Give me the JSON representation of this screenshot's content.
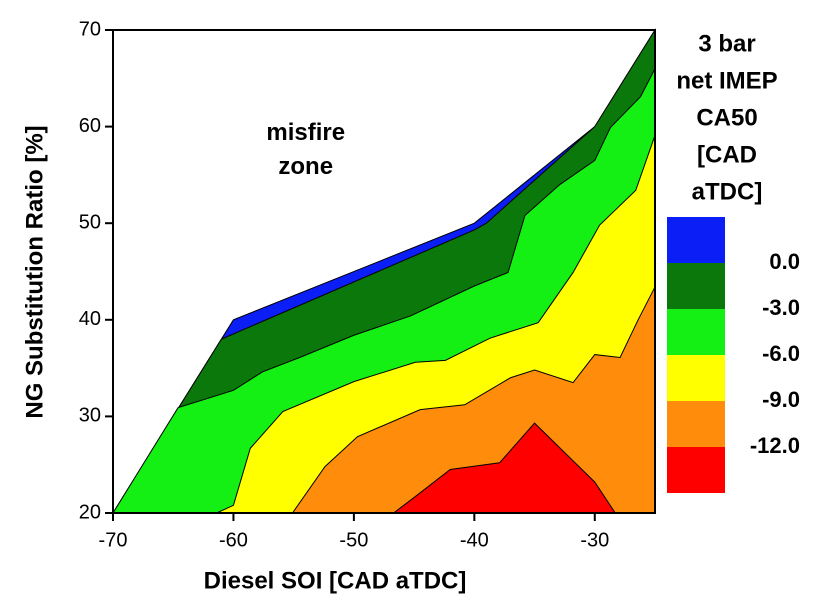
{
  "chart_data": {
    "type": "contour",
    "xlabel": "Diesel SOI [CAD aTDC]",
    "ylabel": "NG Substitution Ratio [%]",
    "xlim": [
      -70,
      -25
    ],
    "ylim": [
      20,
      70
    ],
    "xticks": [
      -70,
      -60,
      -50,
      -40,
      -30
    ],
    "yticks": [
      20,
      30,
      40,
      50,
      60,
      70
    ],
    "annotation": [
      "misfire",
      "zone"
    ],
    "annotation_at": [
      -54,
      60
    ],
    "regions": [
      {
        "color": "#0a1ef5",
        "x": [
          -70,
          -60,
          -40,
          -30,
          -25,
          -25
        ],
        "y": [
          20,
          40,
          50,
          60,
          70,
          20
        ]
      },
      {
        "color": "#0a780a",
        "x": [
          -70,
          -61,
          -40,
          -39,
          -30,
          -25,
          -25
        ],
        "y": [
          20,
          38,
          49.3,
          50,
          60,
          70,
          20
        ]
      },
      {
        "color": "#14f014",
        "x": [
          -70,
          -64.6,
          -60,
          -57.6,
          -54.5,
          -50,
          -45.3,
          -40,
          -37.2,
          -35.8,
          -32.9,
          -30,
          -28.7,
          -26.2,
          -25,
          -25
        ],
        "y": [
          20,
          30.9,
          32.7,
          34.6,
          36.1,
          38.4,
          40.4,
          43.5,
          44.9,
          50.8,
          54,
          56.5,
          59.9,
          63.1,
          66,
          20
        ]
      },
      {
        "color": "#ffff00",
        "x": [
          -61.4,
          -60,
          -58.6,
          -55.9,
          -50,
          -44.9,
          -42.4,
          -38.7,
          -34.7,
          -31.8,
          -29.6,
          -26.6,
          -25,
          -25
        ],
        "y": [
          20,
          20.8,
          26.7,
          30.5,
          33.6,
          35.6,
          35.8,
          38.1,
          39.7,
          44.9,
          49.8,
          53.4,
          59.1,
          20
        ]
      },
      {
        "color": "#ff8c0a",
        "x": [
          -55.1,
          -52.4,
          -49.7,
          -44.5,
          -40.8,
          -37,
          -35,
          -31.8,
          -30,
          -27.9,
          -26.4,
          -25,
          -25
        ],
        "y": [
          20,
          24.8,
          27.9,
          30.7,
          31.2,
          34,
          34.8,
          33.5,
          36.4,
          36.1,
          40,
          43.4,
          20
        ]
      },
      {
        "color": "#ff0000",
        "x": [
          -46.7,
          -44.9,
          -42,
          -37.9,
          -35,
          -30,
          -28.3
        ],
        "y": [
          20,
          21.7,
          24.5,
          25.2,
          29.3,
          23.2,
          20
        ]
      }
    ],
    "colorbar": {
      "title": [
        "3 bar",
        "net IMEP",
        "CA50",
        "[CAD",
        "aTDC]"
      ],
      "colors": [
        "#0a1ef5",
        "#0a780a",
        "#14f014",
        "#ffff00",
        "#ff8c0a",
        "#ff0000"
      ],
      "ticks": [
        {
          "value": 0,
          "label": "0.0"
        },
        {
          "value": -3,
          "label": "-3.0"
        },
        {
          "value": -6,
          "label": "-6.0"
        },
        {
          "value": -9,
          "label": "-9.0"
        },
        {
          "value": -12,
          "label": "-12.0"
        }
      ]
    }
  }
}
